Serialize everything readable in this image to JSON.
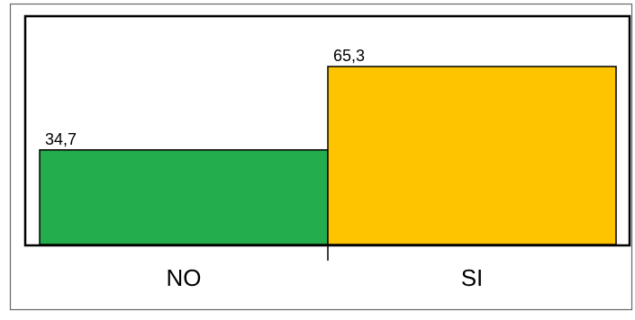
{
  "chart_data": {
    "type": "bar",
    "categories": [
      "NO",
      "SI"
    ],
    "values": [
      34.7,
      65.3
    ],
    "value_labels": [
      "34,7",
      "65,3"
    ],
    "ylim": [
      0,
      75
    ],
    "colors": [
      "#23ad4c",
      "#ffc400"
    ],
    "grid": false
  }
}
